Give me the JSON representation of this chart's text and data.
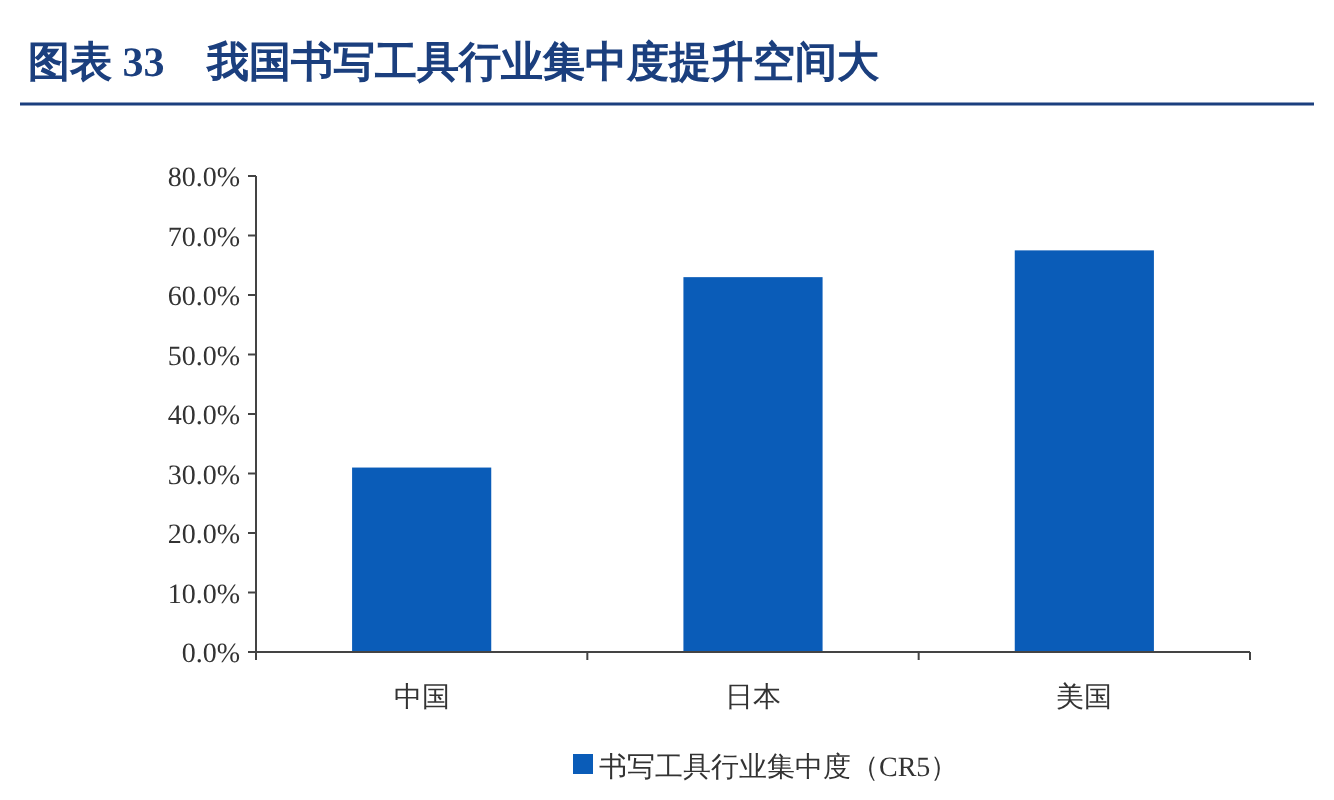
{
  "chart_data": {
    "type": "bar",
    "title": "图表 33　我国书写工具行业集中度提升空间大",
    "categories": [
      "中国",
      "日本",
      "美国"
    ],
    "series": [
      {
        "name": "书写工具行业集中度（CR5）",
        "color": "#0a5cb8",
        "values": [
          31,
          63,
          67.5
        ]
      }
    ],
    "ylim": [
      0,
      80
    ],
    "yticks": [
      {
        "value": 0,
        "label": "0.0%"
      },
      {
        "value": 10,
        "label": "10.0%"
      },
      {
        "value": 20,
        "label": "20.0%"
      },
      {
        "value": 30,
        "label": "30.0%"
      },
      {
        "value": 40,
        "label": "40.0%"
      },
      {
        "value": 50,
        "label": "50.0%"
      },
      {
        "value": 60,
        "label": "60.0%"
      },
      {
        "value": 70,
        "label": "70.0%"
      },
      {
        "value": 80,
        "label": "80.0%"
      }
    ],
    "legend": "bottom"
  }
}
